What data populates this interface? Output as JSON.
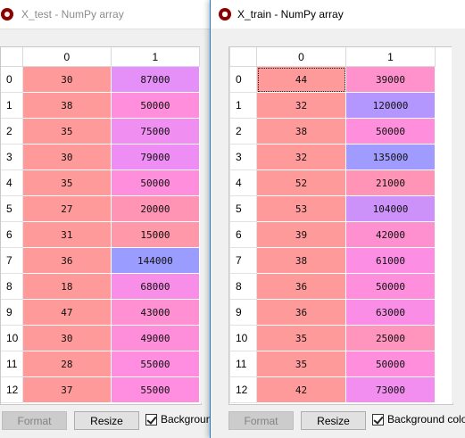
{
  "colors": {
    "c_low": "#ff9a9a",
    "c_lowmid": "#ff92c8",
    "c_mid": "#ff8ee8",
    "c_midhigh": "#e98cf4",
    "c_high1": "#bf94ff",
    "c_high2": "#a79aff",
    "c_high3": "#9fa0ff",
    "c_high4": "#9b9cff"
  },
  "x_test": {
    "title": "X_test - NumPy array",
    "columns": [
      "0",
      "1"
    ],
    "rows": [
      {
        "index": "0",
        "cells": [
          "30",
          "87000"
        ],
        "bg": [
          "#ff9a9a",
          "#e490f8"
        ]
      },
      {
        "index": "1",
        "cells": [
          "38",
          "50000"
        ],
        "bg": [
          "#ff9a9a",
          "#ff8edc"
        ]
      },
      {
        "index": "2",
        "cells": [
          "35",
          "75000"
        ],
        "bg": [
          "#ff9a9a",
          "#f08ef2"
        ]
      },
      {
        "index": "3",
        "cells": [
          "30",
          "79000"
        ],
        "bg": [
          "#ff9a9a",
          "#ee8ef4"
        ]
      },
      {
        "index": "4",
        "cells": [
          "35",
          "50000"
        ],
        "bg": [
          "#ff9a9a",
          "#ff8edc"
        ]
      },
      {
        "index": "5",
        "cells": [
          "27",
          "20000"
        ],
        "bg": [
          "#ff9a9a",
          "#ff94b4"
        ]
      },
      {
        "index": "6",
        "cells": [
          "31",
          "15000"
        ],
        "bg": [
          "#ff9a9a",
          "#ff98a8"
        ]
      },
      {
        "index": "7",
        "cells": [
          "36",
          "144000"
        ],
        "bg": [
          "#ff9a9a",
          "#9b9cff"
        ]
      },
      {
        "index": "8",
        "cells": [
          "18",
          "68000"
        ],
        "bg": [
          "#ff9a9a",
          "#f88ee8"
        ]
      },
      {
        "index": "9",
        "cells": [
          "47",
          "43000"
        ],
        "bg": [
          "#ff9a9a",
          "#ff90d2"
        ]
      },
      {
        "index": "10",
        "cells": [
          "30",
          "49000"
        ],
        "bg": [
          "#ff9a9a",
          "#ff8eda"
        ]
      },
      {
        "index": "11",
        "cells": [
          "28",
          "55000"
        ],
        "bg": [
          "#ff9a9a",
          "#ff8ee0"
        ]
      },
      {
        "index": "12",
        "cells": [
          "37",
          "55000"
        ],
        "bg": [
          "#ff9a9a",
          "#ff8ee0"
        ]
      }
    ],
    "buttons": {
      "format": "Format",
      "resize": "Resize"
    },
    "checkbox_label": "Background"
  },
  "x_train": {
    "title": "X_train - NumPy array",
    "columns": [
      "0",
      "1"
    ],
    "rows": [
      {
        "index": "0",
        "cells": [
          "44",
          "39000"
        ],
        "bg": [
          "#ff9a9a",
          "#ff92cc"
        ]
      },
      {
        "index": "1",
        "cells": [
          "32",
          "120000"
        ],
        "bg": [
          "#ff9a9a",
          "#b496ff"
        ]
      },
      {
        "index": "2",
        "cells": [
          "38",
          "50000"
        ],
        "bg": [
          "#ff9a9a",
          "#ff8edc"
        ]
      },
      {
        "index": "3",
        "cells": [
          "32",
          "135000"
        ],
        "bg": [
          "#ff9a9a",
          "#a09cff"
        ]
      },
      {
        "index": "4",
        "cells": [
          "52",
          "21000"
        ],
        "bg": [
          "#ff9a9a",
          "#ff94b6"
        ]
      },
      {
        "index": "5",
        "cells": [
          "53",
          "104000"
        ],
        "bg": [
          "#ff9a9a",
          "#cc92fa"
        ]
      },
      {
        "index": "6",
        "cells": [
          "39",
          "42000"
        ],
        "bg": [
          "#ff9a9a",
          "#ff90d0"
        ]
      },
      {
        "index": "7",
        "cells": [
          "38",
          "61000"
        ],
        "bg": [
          "#ff9a9a",
          "#fc8ee4"
        ]
      },
      {
        "index": "8",
        "cells": [
          "36",
          "50000"
        ],
        "bg": [
          "#ff9a9a",
          "#ff8edc"
        ]
      },
      {
        "index": "9",
        "cells": [
          "36",
          "63000"
        ],
        "bg": [
          "#ff9a9a",
          "#fa8ee6"
        ]
      },
      {
        "index": "10",
        "cells": [
          "35",
          "25000"
        ],
        "bg": [
          "#ff9a9a",
          "#ff94bc"
        ]
      },
      {
        "index": "11",
        "cells": [
          "35",
          "50000"
        ],
        "bg": [
          "#ff9a9a",
          "#ff8edc"
        ]
      },
      {
        "index": "12",
        "cells": [
          "42",
          "73000"
        ],
        "bg": [
          "#ff9a9a",
          "#f28ef0"
        ]
      }
    ],
    "buttons": {
      "format": "Format",
      "resize": "Resize"
    },
    "checkbox_label": "Background color"
  }
}
